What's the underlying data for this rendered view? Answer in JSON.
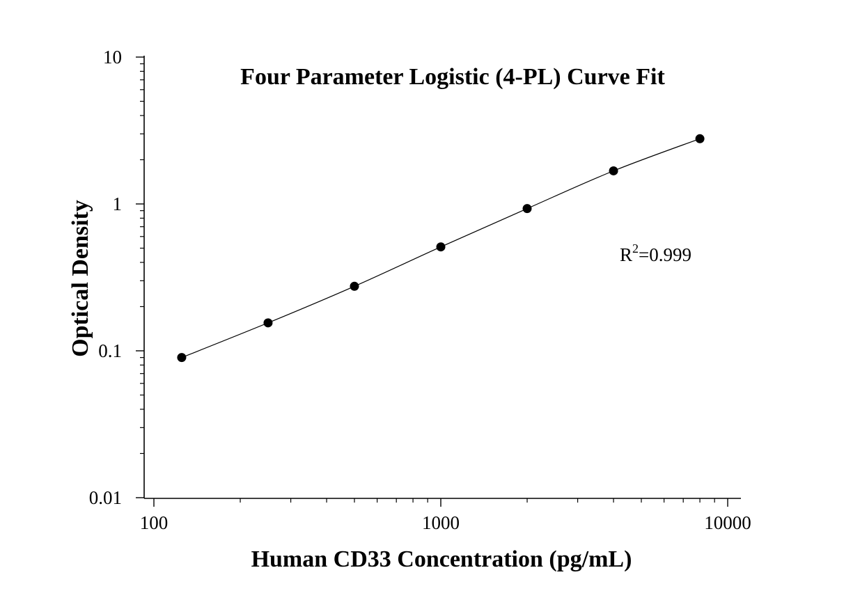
{
  "chart_data": {
    "type": "scatter",
    "title": "Four Parameter Logistic (4-PL) Curve Fit",
    "xlabel": "Human CD33 Concentration (pg/mL)",
    "ylabel": "Optical Density",
    "x_scale": "log",
    "y_scale": "log",
    "xlim": [
      100,
      10000
    ],
    "ylim": [
      0.01,
      10
    ],
    "x_ticks": [
      {
        "value": 100,
        "label": "100"
      },
      {
        "value": 1000,
        "label": "1000"
      },
      {
        "value": 10000,
        "label": "10000"
      }
    ],
    "y_ticks": [
      {
        "value": 0.01,
        "label": "0.01"
      },
      {
        "value": 0.1,
        "label": "0.1"
      },
      {
        "value": 1,
        "label": "1"
      },
      {
        "value": 10,
        "label": "10"
      }
    ],
    "grid": false,
    "legend": "none",
    "series": [
      {
        "x": [
          125,
          250,
          500,
          1000,
          2000,
          4000,
          8000
        ],
        "y": [
          0.09,
          0.155,
          0.275,
          0.51,
          0.93,
          1.68,
          2.78
        ],
        "marker": "filled-circle",
        "color": "#000000",
        "fit_curve": true
      }
    ],
    "annotation": {
      "prefix": "R",
      "superscript": "2",
      "suffix": "=0.999"
    }
  }
}
